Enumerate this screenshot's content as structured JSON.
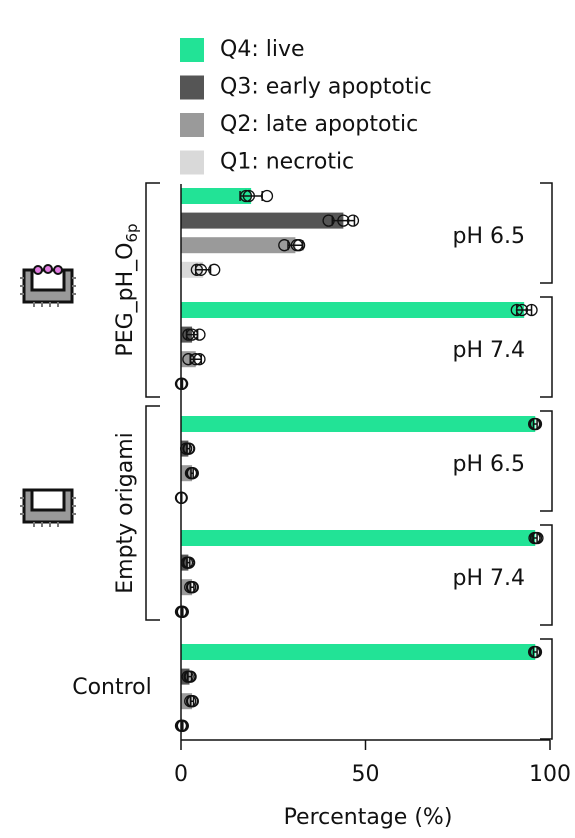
{
  "chart_data": {
    "type": "bar",
    "orientation": "horizontal",
    "groups": [
      {
        "name": "PEG_pH_O",
        "subscript": "6p"
      },
      {
        "name": "Empty origami"
      },
      {
        "name": "Control"
      }
    ],
    "categories": [
      "pH 6.5",
      "pH 7.4",
      "pH 6.5",
      "pH 7.4",
      null
    ],
    "series": [
      {
        "name": "Q4: live",
        "color": "#22e396",
        "values": [
          19,
          93,
          96,
          96,
          96
        ],
        "errors": [
          3,
          2,
          0.5,
          0.5,
          0.5
        ],
        "points": [
          [
            17.6,
            18.4,
            23.3
          ],
          [
            91,
            92.4,
            95
          ],
          [
            95.7,
            96,
            96.2
          ],
          [
            95.8,
            96.2,
            96.6
          ],
          [
            95.7,
            96,
            96.2
          ]
        ]
      },
      {
        "name": "Q3: early apoptotic",
        "color": "#555555",
        "values": [
          44,
          3,
          2,
          2,
          2.3
        ],
        "errors": [
          3,
          1.5,
          0.4,
          0.4,
          0.5
        ],
        "points": [
          [
            40,
            44,
            46.6
          ],
          [
            2,
            3,
            5
          ],
          [
            1.4,
            2,
            2.2
          ],
          [
            1.6,
            2,
            2.2
          ],
          [
            1.8,
            2.3,
            2.6
          ]
        ]
      },
      {
        "name": "Q2: late apoptotic",
        "color": "#9a9a9a",
        "values": [
          31,
          4,
          3,
          3,
          3
        ],
        "errors": [
          2,
          1.5,
          0.3,
          0.5,
          0.4
        ],
        "points": [
          [
            28,
            31.4,
            32
          ],
          [
            2,
            4,
            5
          ],
          [
            2.7,
            3.2,
            3
          ],
          [
            2.5,
            3.2,
            3
          ],
          [
            2.5,
            3,
            3.2
          ]
        ]
      },
      {
        "name": "Q1: necrotic",
        "color": "#d9d9d9",
        "values": [
          6,
          0.2,
          0.1,
          0.3,
          0.3
        ],
        "errors": [
          2,
          0.2,
          0.1,
          0.2,
          0.2
        ],
        "points": [
          [
            4.3,
            5.4,
            9
          ],
          [
            0,
            0.3,
            0.2
          ],
          [
            0,
            0.2,
            0.1
          ],
          [
            0,
            0.5,
            0.3
          ],
          [
            0,
            0.3,
            0.5
          ]
        ]
      }
    ],
    "xlim": [
      0,
      100
    ],
    "xticks": [
      0,
      50,
      100
    ],
    "xlabel": "Percentage (%)"
  }
}
